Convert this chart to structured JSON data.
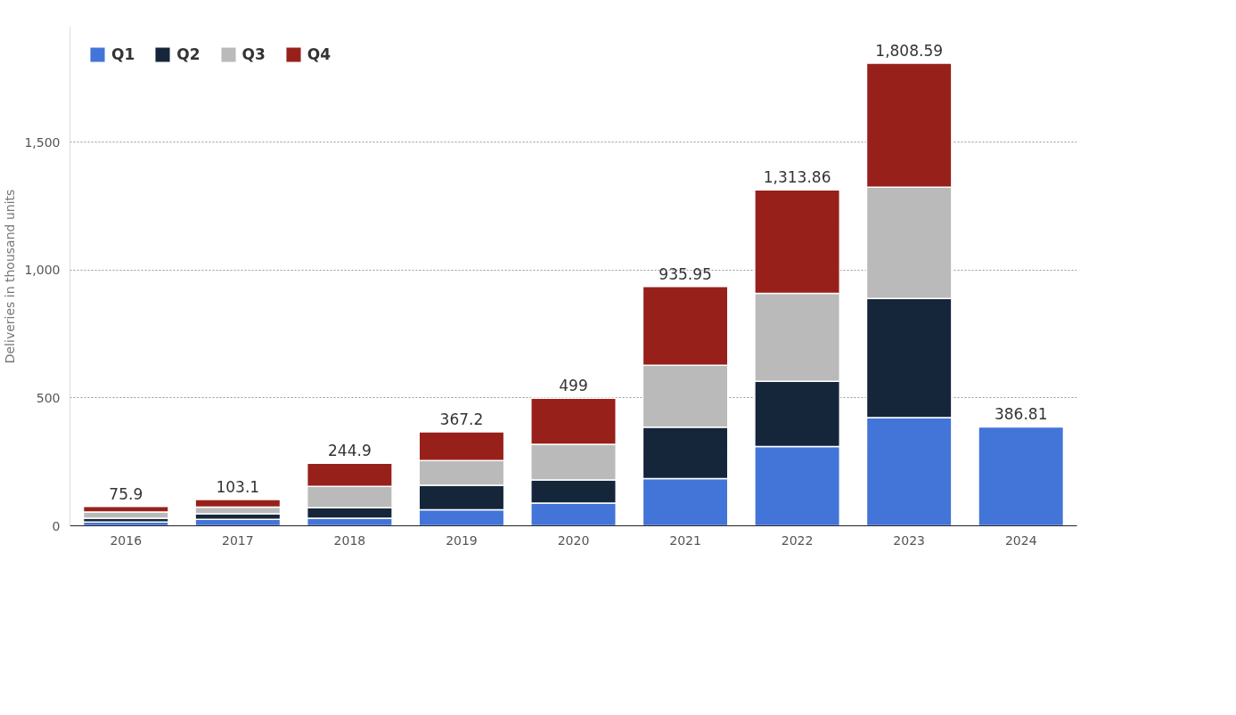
{
  "chart_data": {
    "type": "bar",
    "stacked": true,
    "ylabel": "Deliveries in thousand units",
    "categories": [
      "2016",
      "2017",
      "2018",
      "2019",
      "2020",
      "2021",
      "2022",
      "2023",
      "2024"
    ],
    "series": [
      {
        "name": "Q1",
        "color": "#4374d8",
        "values": [
          14.82,
          25.0,
          29.98,
          63.0,
          88.4,
          184.8,
          310.05,
          422.88,
          386.81
        ]
      },
      {
        "name": "Q2",
        "color": "#15263b",
        "values": [
          14.38,
          22.0,
          40.74,
          95.2,
          90.65,
          201.25,
          254.7,
          466.14,
          null
        ]
      },
      {
        "name": "Q3",
        "color": "#bababa",
        "values": [
          24.5,
          26.15,
          83.5,
          97.0,
          139.3,
          241.3,
          343.83,
          435.06,
          null
        ]
      },
      {
        "name": "Q4",
        "color": "#98201b",
        "values": [
          22.2,
          29.95,
          90.68,
          112.0,
          180.65,
          308.6,
          405.28,
          484.51,
          null
        ]
      }
    ],
    "totals": [
      "75.9",
      "103.1",
      "244.9",
      "367.2",
      "499",
      "935.95",
      "1,313.86",
      "1,808.59",
      "386.81"
    ],
    "ylim": [
      0,
      1950
    ],
    "yticks": [
      0,
      500,
      {
        "value": 1000,
        "label": "1,000"
      },
      {
        "value": 1500,
        "label": "1,500"
      }
    ],
    "grid": "y",
    "legend": "top left"
  }
}
